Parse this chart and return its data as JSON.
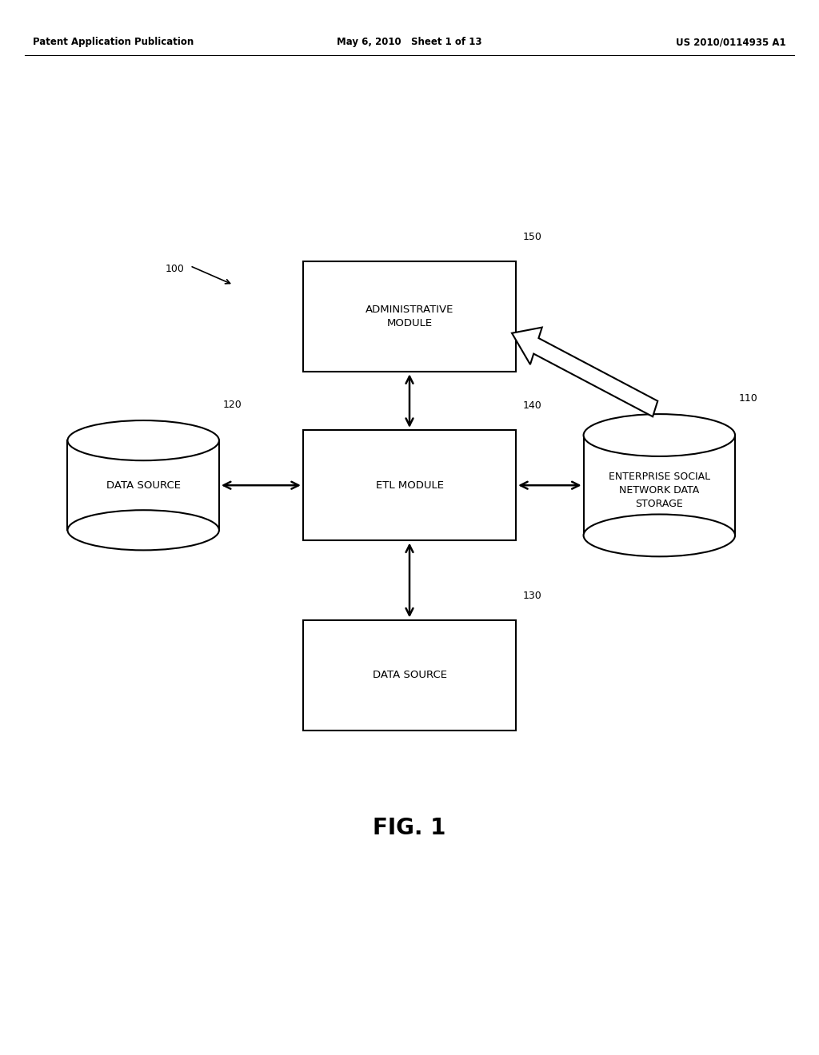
{
  "bg_color": "#ffffff",
  "header_left": "Patent Application Publication",
  "header_mid": "May 6, 2010   Sheet 1 of 13",
  "header_right": "US 2010/0114935 A1",
  "fig_label": "FIG. 1",
  "label_100": "100",
  "label_110": "110",
  "label_120": "120",
  "label_130": "130",
  "label_140": "140",
  "label_150": "150",
  "box_admin": "ADMINISTRATIVE\nMODULE",
  "box_etl": "ETL MODULE",
  "box_ds_bottom": "DATA SOURCE",
  "cyl_esn": "ENTERPRISE SOCIAL\nNETWORK DATA\nSTORAGE",
  "cyl_ds_left": "DATA SOURCE",
  "text_color": "#000000",
  "line_color": "#000000",
  "line_width": 1.5
}
